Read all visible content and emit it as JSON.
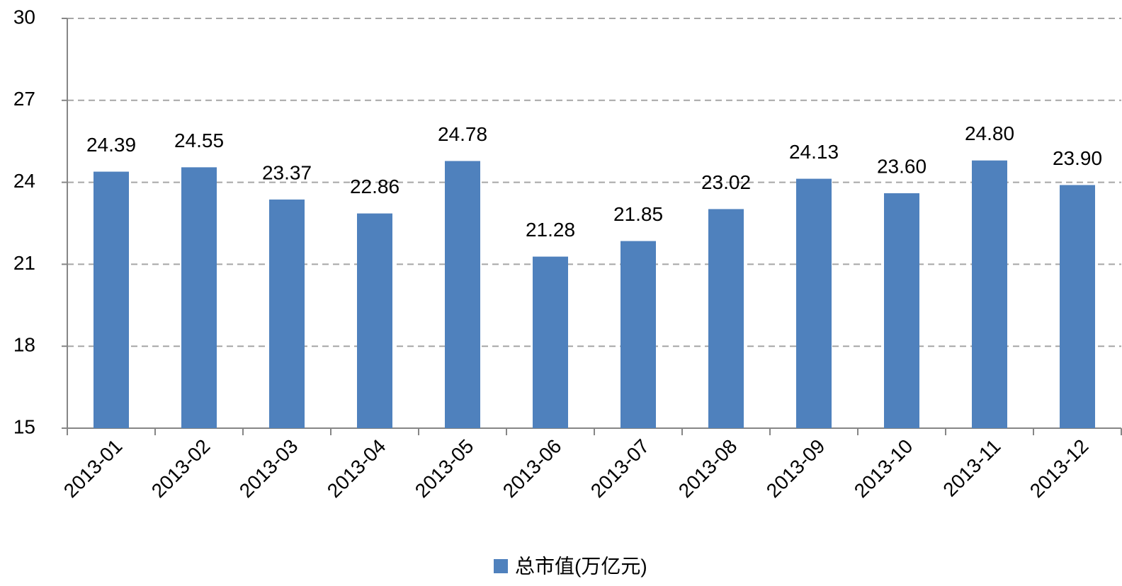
{
  "chart_data": {
    "type": "bar",
    "categories": [
      "2013-01",
      "2013-02",
      "2013-03",
      "2013-04",
      "2013-05",
      "2013-06",
      "2013-07",
      "2013-08",
      "2013-09",
      "2013-10",
      "2013-11",
      "2013-12"
    ],
    "series": [
      {
        "name": "总市值(万亿元)",
        "color": "#4f81bd",
        "values": [
          24.39,
          24.55,
          23.37,
          22.86,
          24.78,
          21.28,
          21.85,
          23.02,
          24.13,
          23.6,
          24.8,
          23.9
        ],
        "value_labels": [
          "24.39",
          "24.55",
          "23.37",
          "22.86",
          "24.78",
          "21.28",
          "21.85",
          "23.02",
          "24.13",
          "23.60",
          "24.80",
          "23.90"
        ]
      }
    ],
    "ylim": [
      15,
      30
    ],
    "yticks": [
      15,
      18,
      21,
      24,
      27,
      30
    ],
    "grid": true,
    "legend": "bottom"
  }
}
